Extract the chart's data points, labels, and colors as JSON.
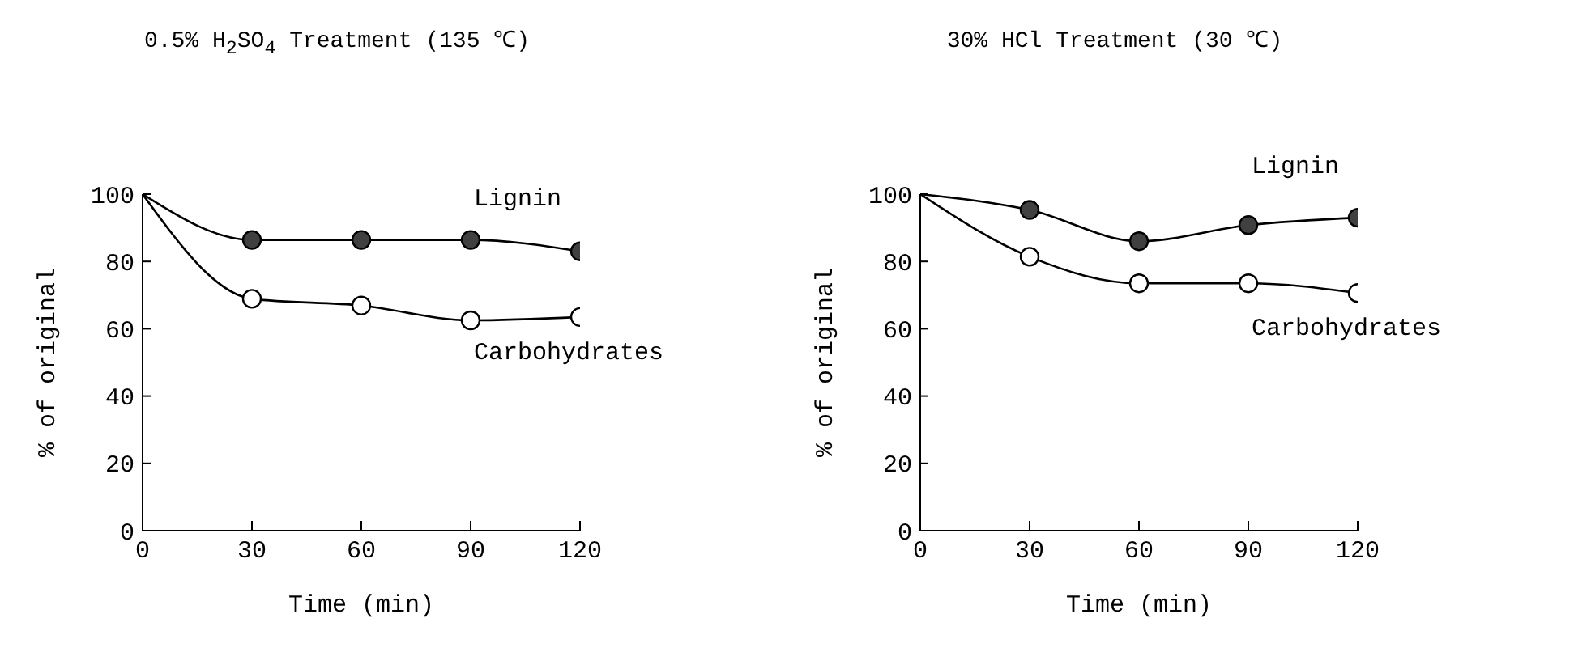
{
  "chart_data": [
    {
      "type": "line",
      "title": "0.5% H$_{2}$SO$_{4}$ Treatment (135 ℃)",
      "xlabel": "Time (min)",
      "ylabel": "% of original",
      "x": [
        0,
        30,
        60,
        90,
        120
      ],
      "xlim": [
        0,
        120
      ],
      "xticks": [
        0,
        30,
        60,
        90,
        120
      ],
      "ylim": [
        0,
        100
      ],
      "yticks": [
        0,
        20,
        40,
        60,
        80,
        100
      ],
      "grid": false,
      "legend": false,
      "marker": "circle",
      "series": [
        {
          "name": "Lignin",
          "color": "#404040",
          "values": [
            100,
            86.4,
            86.4,
            86.4,
            83
          ]
        },
        {
          "name": "Carbohydrates",
          "color": "#ffffff",
          "values": [
            100,
            68.9,
            66.9,
            62.5,
            63.5
          ]
        }
      ]
    },
    {
      "type": "line",
      "title": "30% HCl Treatment (30 ℃)",
      "xlabel": "Time (min)",
      "ylabel": "% of original",
      "x": [
        0,
        30,
        60,
        90,
        120
      ],
      "xlim": [
        0,
        120
      ],
      "xticks": [
        0,
        30,
        60,
        90,
        120
      ],
      "ylim": [
        0,
        100
      ],
      "yticks": [
        0,
        20,
        40,
        60,
        80,
        100
      ],
      "grid": false,
      "legend": false,
      "marker": "circle",
      "series": [
        {
          "name": "Lignin",
          "color": "#404040",
          "values": [
            100,
            95.3,
            86,
            90.8,
            93
          ]
        },
        {
          "name": "Carbohydrates",
          "color": "#ffffff",
          "values": [
            100,
            81.4,
            73.5,
            73.5,
            70.6
          ]
        }
      ]
    }
  ]
}
